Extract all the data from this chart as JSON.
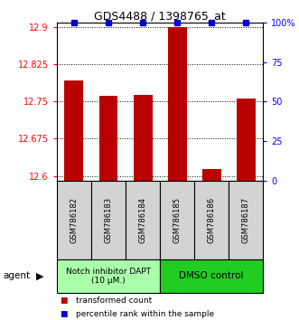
{
  "title": "GDS4488 / 1398765_at",
  "samples": [
    "GSM786182",
    "GSM786183",
    "GSM786184",
    "GSM786185",
    "GSM786186",
    "GSM786187"
  ],
  "bar_values": [
    12.793,
    12.761,
    12.763,
    12.9,
    12.614,
    12.757
  ],
  "percentile_values": [
    100,
    100,
    100,
    100,
    100,
    100
  ],
  "ylim_left": [
    12.59,
    12.91
  ],
  "ylim_right": [
    0,
    100
  ],
  "yticks_left": [
    12.6,
    12.675,
    12.75,
    12.825,
    12.9
  ],
  "ytick_labels_left": [
    "12.6",
    "12.675",
    "12.75",
    "12.825",
    "12.9"
  ],
  "yticks_right": [
    0,
    25,
    50,
    75,
    100
  ],
  "ytick_labels_right": [
    "0",
    "25",
    "50",
    "75",
    "100%"
  ],
  "bar_color": "#bb0000",
  "percentile_color": "#0000cc",
  "groups": [
    {
      "label": "Notch inhibitor DAPT\n(10 μM.)",
      "color": "#aaffaa",
      "samples": [
        0,
        1,
        2
      ]
    },
    {
      "label": "DMSO control",
      "color": "#22cc22",
      "samples": [
        3,
        4,
        5
      ]
    }
  ],
  "agent_label": "agent",
  "legend_items": [
    {
      "color": "#bb0000",
      "label": "transformed count"
    },
    {
      "color": "#0000cc",
      "label": "percentile rank within the sample"
    }
  ],
  "bar_width": 0.55,
  "bar_bottom": 12.59
}
